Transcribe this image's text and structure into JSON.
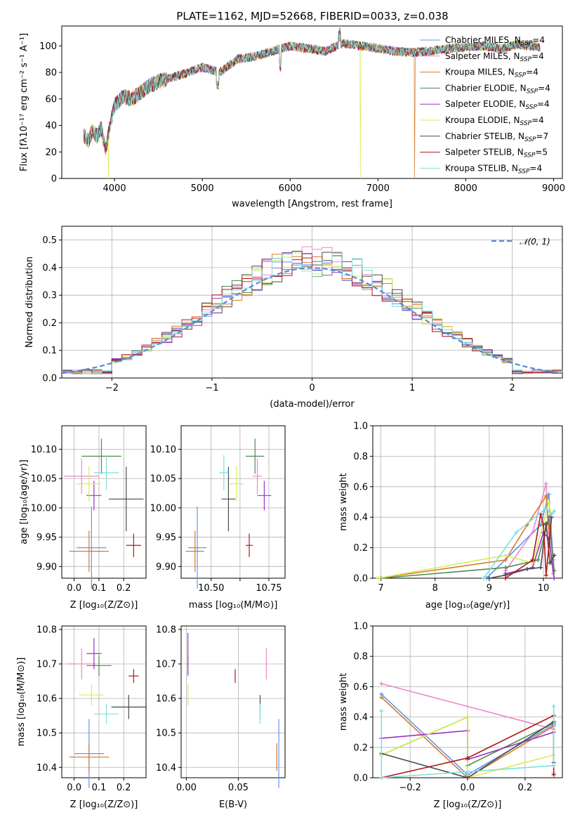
{
  "title": "PLATE=1162, MJD=52668, FIBERID=0033, z=0.038",
  "colors": {
    "Chabrier MILES": "#6495ed",
    "Salpeter MILES": "#e88ac8",
    "Kroupa MILES": "#d87a2a",
    "Chabrier ELODIE": "#4f8a4f",
    "Salpeter ELODIE": "#9b30c8",
    "Kroupa ELODIE": "#d8ec58",
    "Chabrier STELIB": "#4a4a4a",
    "Salpeter STELIB": "#b01818",
    "Kroupa STELIB": "#80dede"
  },
  "chart_data": [
    {
      "id": "spectrum",
      "type": "line",
      "title": "PLATE=1162, MJD=52668, FIBERID=0033, z=0.038",
      "xlabel": "wavelength [Angstrom, rest frame]",
      "ylabel": "Flux [fλ10⁻¹⁷ erg cm⁻² s⁻¹ A⁻¹]",
      "xlim": [
        3400,
        9100
      ],
      "ylim": [
        0,
        115
      ],
      "xticks": [
        4000,
        5000,
        6000,
        7000,
        8000,
        9000
      ],
      "yticks": [
        0,
        20,
        40,
        60,
        80,
        100
      ],
      "x": [
        3650,
        3700,
        3750,
        3800,
        3850,
        3900,
        3950,
        4000,
        4100,
        4200,
        4300,
        4400,
        4500,
        4600,
        4800,
        5000,
        5200,
        5400,
        5600,
        5800,
        6000,
        6200,
        6400,
        6600,
        6800,
        7000,
        7200,
        7400,
        7600,
        7800,
        8000,
        8200,
        8400,
        8600,
        8850
      ],
      "y": [
        33,
        28,
        36,
        32,
        38,
        22,
        40,
        55,
        62,
        60,
        65,
        70,
        73,
        75,
        79,
        84,
        80,
        90,
        92,
        96,
        100,
        98,
        96,
        102,
        100,
        98,
        96,
        95,
        96,
        98,
        99,
        100,
        98,
        101,
        99
      ],
      "drops": [
        {
          "x": 3930,
          "series": "Kroupa ELODIE"
        },
        {
          "x": 6800,
          "series": "Kroupa ELODIE"
        },
        {
          "x": 7420,
          "series": "Kroupa MILES"
        }
      ],
      "series": [
        {
          "name": "Chabrier MILES, Nₛₛₚ=4",
          "label_main": "Chabrier MILES, N",
          "label_sub": "SSP",
          "label_tail": "=4"
        },
        {
          "name": "Salpeter MILES, N=4",
          "label_main": "Salpeter MILES, N",
          "label_sub": "SSP",
          "label_tail": "=4"
        },
        {
          "name": "Kroupa MILES, N=4",
          "label_main": "Kroupa MILES, N",
          "label_sub": "SSP",
          "label_tail": "=4"
        },
        {
          "name": "Chabrier ELODIE, N=4",
          "label_main": "Chabrier ELODIE, N",
          "label_sub": "SSP",
          "label_tail": "=4"
        },
        {
          "name": "Salpeter ELODIE, N=4",
          "label_main": "Salpeter ELODIE, N",
          "label_sub": "SSP",
          "label_tail": "=4"
        },
        {
          "name": "Kroupa ELODIE, N=4",
          "label_main": "Kroupa ELODIE, N",
          "label_sub": "SSP",
          "label_tail": "=4"
        },
        {
          "name": "Chabrier STELIB, N=7",
          "label_main": "Chabrier STELIB, N",
          "label_sub": "SSP",
          "label_tail": "=7"
        },
        {
          "name": "Salpeter STELIB, N=5",
          "label_main": "Salpeter STELIB, N",
          "label_sub": "SSP",
          "label_tail": "=5"
        },
        {
          "name": "Kroupa STELIB, N=4",
          "label_main": "Kroupa STELIB, N",
          "label_sub": "SSP",
          "label_tail": "=4"
        }
      ],
      "legend": "top-right",
      "grid": false
    },
    {
      "id": "residuals",
      "type": "line",
      "xlabel": "(data-model)/error",
      "ylabel": "Normed distribution",
      "xlim": [
        -2.5,
        2.5
      ],
      "ylim": [
        0,
        0.55
      ],
      "xticks": [
        -2,
        -1,
        0,
        1,
        2
      ],
      "yticks": [
        0.0,
        0.1,
        0.2,
        0.3,
        0.4,
        0.5
      ],
      "bin_width": 0.1,
      "reference": {
        "name": "𝒩(0, 1)",
        "mean": 0,
        "sigma": 1
      },
      "legend": "top-right",
      "grid": true
    },
    {
      "id": "z-age",
      "type": "scatter",
      "xlabel": "Z [log₁₀(Z/Z⊙)]",
      "ylabel": "age  [log₁₀(age/yr)]",
      "xlim": [
        -0.05,
        0.29
      ],
      "ylim": [
        9.88,
        10.14
      ],
      "xticks": [
        0.0,
        0.1,
        0.2
      ],
      "yticks": [
        9.9,
        9.95,
        10.0,
        10.05,
        10.1
      ],
      "points": [
        {
          "series": "Chabrier MILES",
          "x": 0.07,
          "xerr": 0.06,
          "y": 9.932,
          "yerr": 0.07
        },
        {
          "series": "Salpeter MILES",
          "x": 0.03,
          "xerr": 0.07,
          "y": 10.054,
          "yerr": 0.03
        },
        {
          "series": "Kroupa MILES",
          "x": 0.06,
          "xerr": 0.08,
          "y": 9.926,
          "yerr": 0.035
        },
        {
          "series": "Chabrier ELODIE",
          "x": 0.11,
          "xerr": 0.08,
          "y": 10.088,
          "yerr": 0.03
        },
        {
          "series": "Salpeter ELODIE",
          "x": 0.08,
          "xerr": 0.03,
          "y": 10.021,
          "yerr": 0.025
        },
        {
          "series": "Kroupa ELODIE",
          "x": 0.06,
          "xerr": 0.05,
          "y": 10.041,
          "yerr": 0.03
        },
        {
          "series": "Chabrier STELIB",
          "x": 0.21,
          "xerr": 0.07,
          "y": 10.015,
          "yerr": 0.055
        },
        {
          "series": "Salpeter STELIB",
          "x": 0.24,
          "xerr": 0.03,
          "y": 9.936,
          "yerr": 0.02
        },
        {
          "series": "Kroupa STELIB",
          "x": 0.13,
          "xerr": 0.05,
          "y": 10.06,
          "yerr": 0.03
        }
      ],
      "grid": true
    },
    {
      "id": "mass-age",
      "type": "scatter",
      "xlabel": "mass [log₁₀(M/M⊙)]",
      "xlim": [
        10.37,
        10.82
      ],
      "ylim": [
        9.88,
        10.14
      ],
      "xticks": [
        10.5,
        10.625,
        10.75
      ],
      "xticklabels": [
        "10.50",
        "",
        "10.75"
      ],
      "yticks": [
        9.9,
        9.95,
        10.0,
        10.05,
        10.1
      ],
      "points": [
        {
          "series": "Chabrier MILES",
          "x": 10.44,
          "xerr": 0.04,
          "y": 9.932,
          "yerr": 0.07
        },
        {
          "series": "Salpeter MILES",
          "x": 10.7,
          "xerr": 0.02,
          "y": 10.054,
          "yerr": 0.03
        },
        {
          "series": "Kroupa MILES",
          "x": 10.43,
          "xerr": 0.04,
          "y": 9.926,
          "yerr": 0.035
        },
        {
          "series": "Chabrier ELODIE",
          "x": 10.69,
          "xerr": 0.04,
          "y": 10.088,
          "yerr": 0.03
        },
        {
          "series": "Salpeter ELODIE",
          "x": 10.73,
          "xerr": 0.03,
          "y": 10.021,
          "yerr": 0.025
        },
        {
          "series": "Kroupa ELODIE",
          "x": 10.61,
          "xerr": 0.03,
          "y": 10.041,
          "yerr": 0.03
        },
        {
          "series": "Chabrier STELIB",
          "x": 10.575,
          "xerr": 0.03,
          "y": 10.015,
          "yerr": 0.055
        },
        {
          "series": "Salpeter STELIB",
          "x": 10.665,
          "xerr": 0.015,
          "y": 9.936,
          "yerr": 0.02
        },
        {
          "series": "Kroupa STELIB",
          "x": 10.555,
          "xerr": 0.02,
          "y": 10.06,
          "yerr": 0.03
        }
      ],
      "grid": true
    },
    {
      "id": "weight-age",
      "type": "line",
      "xlabel": "age  [log₁₀(age/yr)]",
      "ylabel": "mass weight",
      "xlim": [
        6.85,
        10.35
      ],
      "ylim": [
        0,
        1
      ],
      "xticks": [
        7,
        8,
        9,
        10
      ],
      "yticks": [
        0.0,
        0.2,
        0.4,
        0.6,
        0.8,
        1.0
      ],
      "series": [
        {
          "name": "Chabrier MILES",
          "x": [
            8.95,
            9.95,
            10.1,
            10.18
          ],
          "y": [
            0.0,
            0.35,
            0.55,
            0.12
          ]
        },
        {
          "name": "Salpeter MILES",
          "x": [
            9.3,
            9.8,
            10.05,
            10.1,
            10.18
          ],
          "y": [
            0.05,
            0.3,
            0.62,
            0.3,
            0.03
          ]
        },
        {
          "name": "Kroupa MILES",
          "x": [
            6.95,
            9.3,
            9.7,
            10.05,
            10.15
          ],
          "y": [
            0.0,
            0.12,
            0.35,
            0.54,
            0.1
          ]
        },
        {
          "name": "Chabrier ELODIE",
          "x": [
            7.0,
            9.3,
            9.9,
            10.1,
            10.2
          ],
          "y": [
            0.0,
            0.07,
            0.12,
            0.4,
            0.05
          ]
        },
        {
          "name": "Salpeter ELODIE",
          "x": [
            9.3,
            9.8,
            10.0,
            10.1,
            10.2
          ],
          "y": [
            0.03,
            0.07,
            0.3,
            0.26,
            0.0
          ]
        },
        {
          "name": "Kroupa ELODIE",
          "x": [
            6.95,
            9.3,
            9.8,
            10.1,
            10.15
          ],
          "y": [
            0.0,
            0.15,
            0.1,
            0.5,
            0.4
          ]
        },
        {
          "name": "Chabrier STELIB",
          "x": [
            9.0,
            9.3,
            9.7,
            9.95,
            10.05,
            10.12,
            10.2
          ],
          "y": [
            0.0,
            0.02,
            0.06,
            0.07,
            0.36,
            0.1,
            0.15
          ]
        },
        {
          "name": "Salpeter STELIB",
          "x": [
            9.3,
            9.8,
            9.95,
            10.0,
            10.05,
            10.15
          ],
          "y": [
            0.0,
            0.12,
            0.42,
            0.35,
            0.02,
            0.4
          ]
        },
        {
          "name": "Kroupa STELIB",
          "x": [
            8.9,
            9.5,
            10.05,
            10.15,
            10.2
          ],
          "y": [
            0.0,
            0.3,
            0.46,
            0.42,
            0.44
          ]
        }
      ],
      "grid": true
    },
    {
      "id": "z-mass",
      "type": "scatter",
      "xlabel": "Z [log₁₀(Z/Z⊙)]",
      "ylabel": "mass [log₁₀(M/M⊙)]",
      "xlim": [
        -0.05,
        0.29
      ],
      "ylim": [
        10.37,
        10.81
      ],
      "xticks": [
        0.0,
        0.1,
        0.2
      ],
      "yticks": [
        10.4,
        10.5,
        10.6,
        10.7,
        10.8
      ],
      "points": [
        {
          "series": "Chabrier MILES",
          "x": 0.06,
          "xerr": 0.06,
          "y": 10.44,
          "yerr": 0.1
        },
        {
          "series": "Salpeter MILES",
          "x": 0.03,
          "xerr": 0.06,
          "y": 10.7,
          "yerr": 0.045
        },
        {
          "series": "Kroupa MILES",
          "x": 0.06,
          "xerr": 0.08,
          "y": 10.43,
          "yerr": 0.04
        },
        {
          "series": "Chabrier ELODIE",
          "x": 0.1,
          "xerr": 0.05,
          "y": 10.695,
          "yerr": 0.03
        },
        {
          "series": "Salpeter ELODIE",
          "x": 0.08,
          "xerr": 0.03,
          "y": 10.73,
          "yerr": 0.045
        },
        {
          "series": "Kroupa ELODIE",
          "x": 0.07,
          "xerr": 0.05,
          "y": 10.61,
          "yerr": 0.03
        },
        {
          "series": "Chabrier STELIB",
          "x": 0.22,
          "xerr": 0.07,
          "y": 10.575,
          "yerr": 0.035
        },
        {
          "series": "Salpeter STELIB",
          "x": 0.24,
          "xerr": 0.02,
          "y": 10.665,
          "yerr": 0.02
        },
        {
          "series": "Kroupa STELIB",
          "x": 0.13,
          "xerr": 0.05,
          "y": 10.555,
          "yerr": 0.03
        }
      ],
      "grid": true
    },
    {
      "id": "ebv-mass",
      "type": "scatter",
      "xlabel": "E(B-V)",
      "xlim": [
        -0.005,
        0.095
      ],
      "ylim": [
        10.37,
        10.81
      ],
      "xticks": [
        0.0,
        0.05
      ],
      "xticklabels": [
        "0.00",
        "0.05"
      ],
      "yticks": [
        10.4,
        10.5,
        10.6,
        10.7,
        10.8
      ],
      "points": [
        {
          "series": "Chabrier MILES",
          "x": 0.089,
          "xerr": 0.0,
          "y": 10.44,
          "yerr": 0.1
        },
        {
          "series": "Salpeter MILES",
          "x": 0.077,
          "xerr": 0.0,
          "y": 10.7,
          "yerr": 0.045
        },
        {
          "series": "Kroupa MILES",
          "x": 0.087,
          "xerr": 0.0,
          "y": 10.43,
          "yerr": 0.04
        },
        {
          "series": "Chabrier ELODIE",
          "x": 0.0015,
          "xerr": 0.0,
          "y": 10.695,
          "yerr": 0.03
        },
        {
          "series": "Salpeter ELODIE",
          "x": 0.0015,
          "xerr": 0.0,
          "y": 10.73,
          "yerr": 0.06
        },
        {
          "series": "Kroupa ELODIE",
          "x": 0.0015,
          "xerr": 0.0,
          "y": 10.61,
          "yerr": 0.03
        },
        {
          "series": "Chabrier STELIB",
          "x": 0.071,
          "xerr": 0.0,
          "y": 10.575,
          "yerr": 0.035
        },
        {
          "series": "Salpeter STELIB",
          "x": 0.047,
          "xerr": 0.0,
          "y": 10.665,
          "yerr": 0.02
        },
        {
          "series": "Kroupa STELIB",
          "x": 0.071,
          "xerr": 0.0,
          "y": 10.555,
          "yerr": 0.03
        }
      ],
      "grid": true
    },
    {
      "id": "weight-z",
      "type": "line",
      "xlabel": "Z [log₁₀(Z/Z⊙)]",
      "ylabel": "mass weight",
      "xlim": [
        -0.33,
        0.33
      ],
      "ylim": [
        0,
        1
      ],
      "xticks": [
        -0.2,
        0.0,
        0.2
      ],
      "yticks": [
        0.0,
        0.2,
        0.4,
        0.6,
        0.8,
        1.0
      ],
      "series": [
        {
          "name": "Chabrier MILES",
          "x": [
            -0.3,
            0.0,
            0.3
          ],
          "y": [
            0.55,
            0.02,
            0.35
          ]
        },
        {
          "name": "Salpeter MILES",
          "x": [
            -0.3,
            0.3,
            0.3
          ],
          "y": [
            0.62,
            0.32,
            0.03
          ]
        },
        {
          "name": "Kroupa MILES",
          "x": [
            -0.3,
            0.0,
            0.3
          ],
          "y": [
            0.53,
            0.0,
            0.34
          ]
        },
        {
          "name": "Chabrier ELODIE",
          "x": [
            -0.3,
            0.0,
            0.0,
            0.3
          ],
          "y": [
            0.15,
            0.4,
            0.08,
            0.36
          ]
        },
        {
          "name": "Salpeter ELODIE",
          "x": [
            -0.3,
            0.0,
            0.0,
            0.3
          ],
          "y": [
            0.26,
            0.31,
            0.12,
            0.3
          ]
        },
        {
          "name": "Kroupa ELODIE",
          "x": [
            -0.3,
            0.0,
            0.0,
            0.3
          ],
          "y": [
            0.15,
            0.4,
            0.0,
            0.15
          ]
        },
        {
          "name": "Chabrier STELIB",
          "x": [
            -0.3,
            0.0,
            0.3,
            0.3
          ],
          "y": [
            0.16,
            0.0,
            0.37,
            0.1
          ]
        },
        {
          "name": "Salpeter STELIB",
          "x": [
            -0.3,
            0.0,
            0.3,
            0.3
          ],
          "y": [
            0.0,
            0.13,
            0.41,
            0.02
          ]
        },
        {
          "name": "Kroupa STELIB",
          "x": [
            -0.3,
            -0.3,
            0.0,
            0.3,
            0.3
          ],
          "y": [
            0.44,
            0.0,
            0.04,
            0.08,
            0.47
          ]
        }
      ],
      "grid": true
    }
  ]
}
